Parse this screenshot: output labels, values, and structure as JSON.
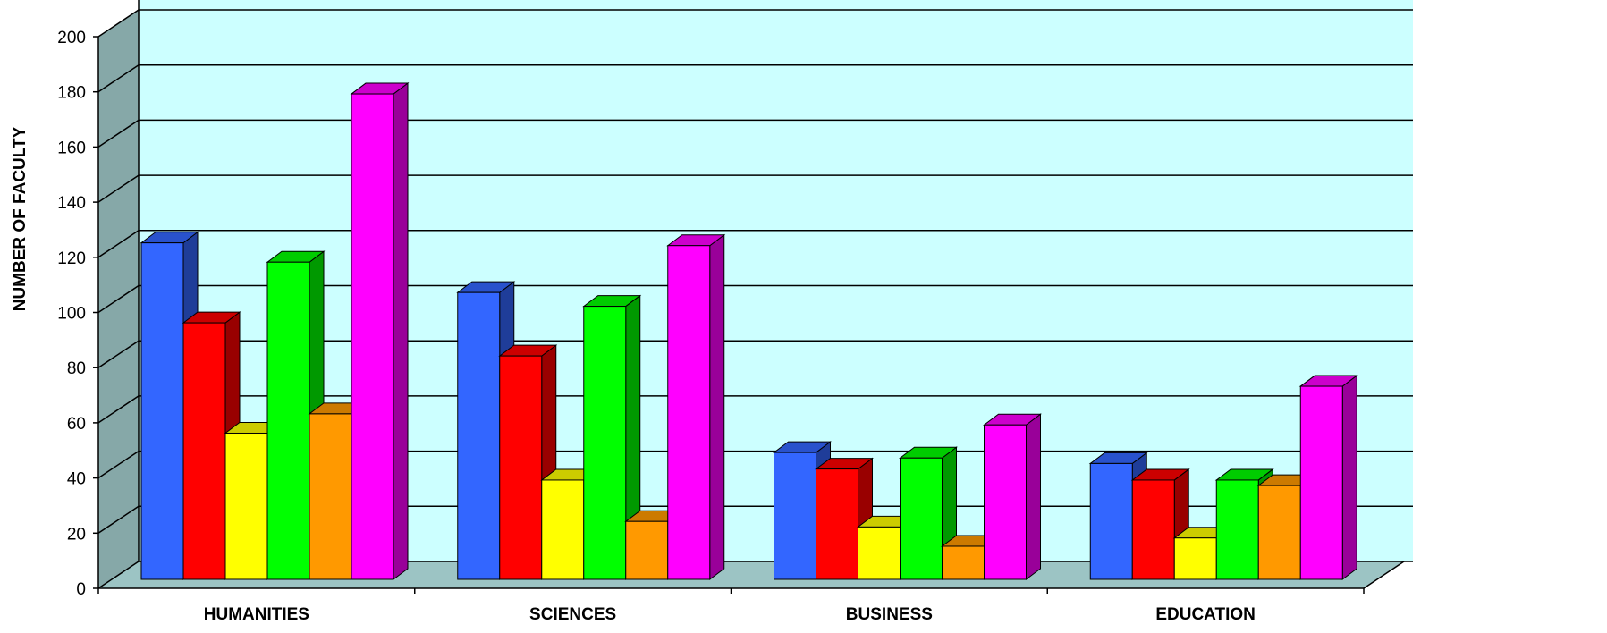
{
  "chart_data": {
    "type": "bar",
    "title": "",
    "xlabel": "",
    "ylabel": "NUMBER OF FACULTY",
    "categories": [
      "HUMANITIES",
      "SCIENCES",
      "BUSINESS",
      "EDUCATION"
    ],
    "series": [
      {
        "color": "#3366FF",
        "values": [
          122,
          104,
          46,
          42
        ]
      },
      {
        "color": "#FF0000",
        "values": [
          93,
          81,
          40,
          36
        ]
      },
      {
        "color": "#FFFF00",
        "values": [
          53,
          36,
          19,
          15
        ]
      },
      {
        "color": "#00FF00",
        "values": [
          115,
          99,
          44,
          36
        ]
      },
      {
        "color": "#FF9900",
        "values": [
          60,
          21,
          12,
          34
        ]
      },
      {
        "color": "#FF00FF",
        "values": [
          176,
          121,
          56,
          70
        ]
      }
    ],
    "yticks": [
      "0",
      "20",
      "40",
      "60",
      "80",
      "100",
      "120",
      "140",
      "160",
      "180",
      "200"
    ],
    "ylim": [
      0,
      200
    ],
    "grid": true,
    "legend": "none",
    "style": "3d-clustered-column",
    "colors": {
      "back_wall": "#CCFFFF",
      "side_wall": "#86A8A8",
      "floor": "#9CC4C4"
    }
  }
}
